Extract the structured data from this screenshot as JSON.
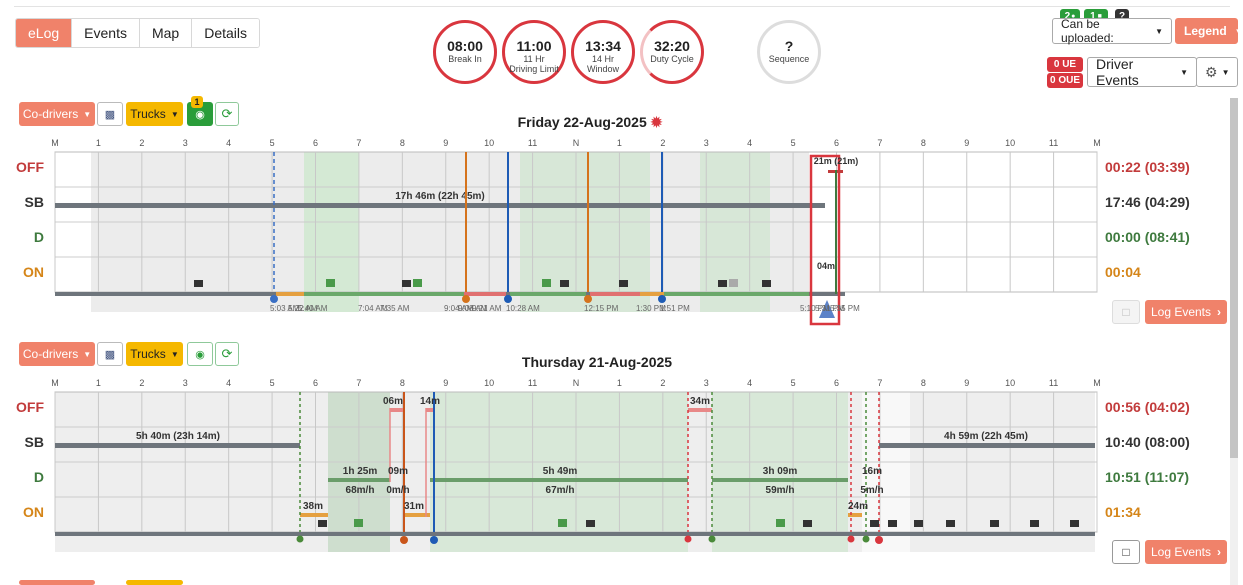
{
  "tabs": [
    {
      "label": "eLog",
      "active": true
    },
    {
      "label": "Events",
      "active": false
    },
    {
      "label": "Map",
      "active": false
    },
    {
      "label": "Details",
      "active": false
    }
  ],
  "clocks": [
    {
      "time": "08:00",
      "label": "Break In",
      "sub": ""
    },
    {
      "time": "11:00",
      "label": "11 Hr",
      "sub": "Driving Limit"
    },
    {
      "time": "13:34",
      "label": "14 Hr",
      "sub": "Window"
    },
    {
      "time": "32:20",
      "label": "Duty Cycle",
      "sub": ""
    },
    {
      "time": "?",
      "label": "Sequence",
      "sub": ""
    }
  ],
  "badges": {
    "drivers": "2",
    "trucks": "1",
    "question": "?",
    "ue": "0 UE",
    "oue": "0 OUE"
  },
  "controls": {
    "upload": "Can be uploaded:",
    "legend": "Legend",
    "driver_events": "Driver Events"
  },
  "toolbar": {
    "codrivers": "Co-drivers",
    "trucks": "Trucks",
    "unit_badge": "1",
    "log_events": "Log Events"
  },
  "hour_labels": [
    "M",
    "1",
    "2",
    "3",
    "4",
    "5",
    "6",
    "7",
    "8",
    "9",
    "10",
    "11",
    "N",
    "1",
    "2",
    "3",
    "4",
    "5",
    "6",
    "7",
    "8",
    "9",
    "10",
    "11",
    "M"
  ],
  "row_labels": {
    "off": "OFF",
    "sb": "SB",
    "d": "D",
    "on": "ON"
  },
  "days": [
    {
      "title": "Friday 22-Aug-2025",
      "totals": {
        "off": "00:22 (03:39)",
        "sb": "17:46 (04:29)",
        "d": "00:00 (08:41)",
        "on": "00:04"
      },
      "annotations": [
        "17h 46m (22h 45m)",
        "21m (21m)",
        "04m"
      ],
      "time_labels": [
        "5:03 AM",
        "5:22 AM",
        "5:40 AM",
        "7:04 AM",
        "7:35 AM",
        "9:04 AM",
        "9:08 AM",
        "9:21 AM",
        "10:28 AM",
        "12:15 PM",
        "1:30 PM",
        "1:51 PM",
        "5:10 PM",
        "5:31 PM",
        "5:35 PM"
      ]
    },
    {
      "title": "Thursday 21-Aug-2025",
      "totals": {
        "off": "00:56 (04:02)",
        "sb": "10:40 (08:00)",
        "d": "10:51 (11:07)",
        "on": "01:34"
      },
      "annotations": [
        "5h 40m (23h 14m)",
        "06m",
        "14m",
        "34m",
        "1h 25m",
        "68m/h",
        "09m",
        "0m/h",
        "5h 49m",
        "67m/h",
        "3h 09m",
        "59m/h",
        "16m",
        "5m/h",
        "38m",
        "31m",
        "24m",
        "4h 59m (22h 45m)"
      ]
    }
  ]
}
